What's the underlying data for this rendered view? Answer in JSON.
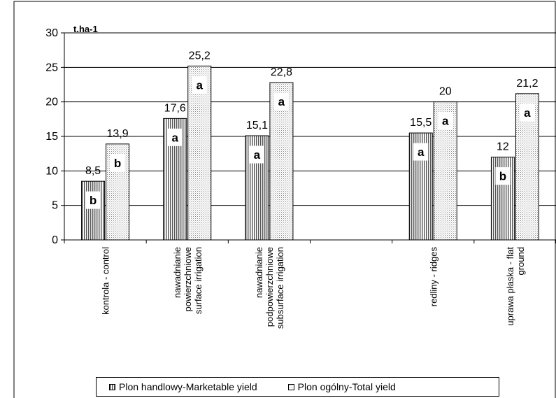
{
  "chart_data": {
    "type": "bar",
    "ylabel": "t.ha-1",
    "ylim": [
      0,
      30
    ],
    "yticks": [
      "0",
      "5",
      "10",
      "15",
      "20",
      "25",
      "30"
    ],
    "grid": "horizontal",
    "legend_position": "bottom",
    "categories": [
      [
        "kontrola - control"
      ],
      [
        "nawadnianie",
        "powierzchniowe",
        "surface irrigation"
      ],
      [
        "nawadnianie",
        "podpowierzchniowe",
        "subsurface irrigation"
      ],
      [
        ""
      ],
      [
        "redliny - ridges"
      ],
      [
        "uprawa płaska - flat",
        "ground"
      ]
    ],
    "series": [
      {
        "name": "Plon handlowy-Marketable yield",
        "pattern": "vertical-lines",
        "values": [
          8.5,
          17.6,
          15.1,
          null,
          15.5,
          12
        ],
        "value_labels": [
          "8,5",
          "17,6",
          "15,1",
          "",
          "15,5",
          "12"
        ],
        "letters": [
          "b",
          "a",
          "a",
          "",
          "a",
          "b"
        ]
      },
      {
        "name": "Plon ogólny-Total yield",
        "pattern": "dots",
        "values": [
          13.9,
          25.2,
          22.8,
          null,
          20,
          21.2
        ],
        "value_labels": [
          "13,9",
          "25,2",
          "22,8",
          "",
          "20",
          "21,2"
        ],
        "letters": [
          "b",
          "a",
          "a",
          "",
          "a",
          "a"
        ]
      }
    ]
  }
}
